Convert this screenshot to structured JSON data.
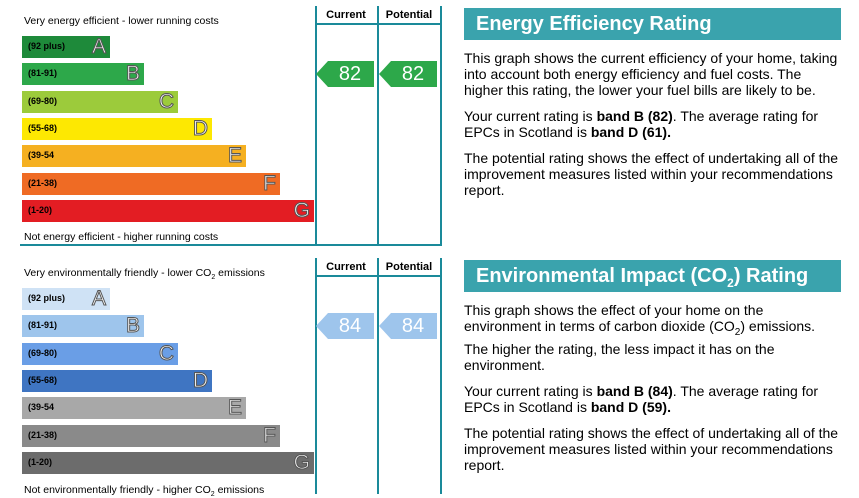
{
  "energy": {
    "chart_data": {
      "type": "bar",
      "top_caption": "Very energy efficient - lower running costs",
      "bottom_caption": "Not energy efficient - higher running costs",
      "columns": [
        "Current",
        "Potential"
      ],
      "bands": [
        {
          "range": "(92 plus)",
          "letter": "A",
          "color": "#1e8a3a"
        },
        {
          "range": "(81-91)",
          "letter": "B",
          "color": "#2da84a"
        },
        {
          "range": "(69-80)",
          "letter": "C",
          "color": "#9ccb3b"
        },
        {
          "range": "(55-68)",
          "letter": "D",
          "color": "#fde802"
        },
        {
          "range": "(39-54",
          "letter": "E",
          "color": "#f5b021"
        },
        {
          "range": "(21-38)",
          "letter": "F",
          "color": "#ef6b24"
        },
        {
          "range": "(1-20)",
          "letter": "G",
          "color": "#e31d23"
        }
      ],
      "current": 82,
      "potential": 82,
      "arrow_color": "#2da84a"
    }
  },
  "environment": {
    "chart_data": {
      "type": "bar",
      "top_caption": "Very environmentally friendly - lower CO",
      "top_caption_sub": "2",
      "top_caption_end": " emissions",
      "bottom_caption": "Not environmentally friendly - higher CO",
      "bottom_caption_sub": "2",
      "bottom_caption_end": " emissions",
      "columns": [
        "Current",
        "Potential"
      ],
      "bands": [
        {
          "range": "(92 plus)",
          "letter": "A",
          "color": "#cfe2f5"
        },
        {
          "range": "(81-91)",
          "letter": "B",
          "color": "#9ec5ec"
        },
        {
          "range": "(69-80)",
          "letter": "C",
          "color": "#6a9ee6"
        },
        {
          "range": "(55-68)",
          "letter": "D",
          "color": "#3f75c2"
        },
        {
          "range": "(39-54",
          "letter": "E",
          "color": "#a8a8a8"
        },
        {
          "range": "(21-38)",
          "letter": "F",
          "color": "#8a8a8a"
        },
        {
          "range": "(1-20)",
          "letter": "G",
          "color": "#6c6c6c"
        }
      ],
      "current": 84,
      "potential": 84,
      "arrow_color": "#9ec5ec"
    }
  },
  "panel1": {
    "title": "Energy Efficiency Rating",
    "p1": "This graph shows the current efficiency of your home, taking into account both energy efficiency and fuel costs. The higher this rating, the lower your fuel bills are likely to be.",
    "p2a": "Your current rating is ",
    "p2b": "band B (82)",
    "p2c": ". The average rating for EPCs in Scotland is ",
    "p2d": "band D (61).",
    "p3": "The potential rating shows the effect of undertaking all of the improvement measures listed within your recommendations report."
  },
  "panel2": {
    "title_a": "Environmental Impact (CO",
    "title_sub": "2",
    "title_b": ") Rating",
    "p1a": "This graph shows the effect of your home on the environment in terms of carbon dioxide (CO",
    "p1sub": "2",
    "p1b": ") emissions. The higher the rating, the less impact it has on the environment.",
    "p2a": "Your current rating is ",
    "p2b": "band B (84)",
    "p2c": ". The average rating for EPCs in Scotland is ",
    "p2d": "band D (59).",
    "p3": "The potential rating shows the effect of undertaking all of the improvement measures listed within your recommendations report."
  }
}
